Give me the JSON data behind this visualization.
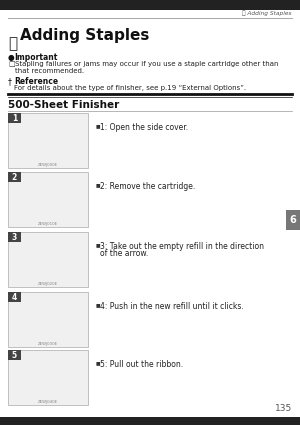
{
  "page_bg": "#ffffff",
  "header_line_color": "#aaaaaa",
  "header_right_text": "庭 Adding Staples",
  "title": "Adding Staples",
  "important_label": "Important",
  "important_text_line1": "Stapling failures or jams may occur if you use a staple cartridge other than",
  "important_text_line2": "that recommended.",
  "reference_label": "Reference",
  "reference_text": "For details about the type of finisher, see p.19 “External Options”.",
  "section_title": "500-Sheet Finisher",
  "steps": [
    "1: Open the side cover.",
    "2: Remove the cartridge.",
    "3: Take out the empty refill in the direction\nof the arrow.",
    "4: Push in the new refill until it clicks.",
    "5: Pull out the ribbon."
  ],
  "step_numbers": [
    "1",
    "2",
    "3",
    "4",
    "5"
  ],
  "step_codes": [
    "ZEWJ000E",
    "ZEWJ010E",
    "ZEWJ020E",
    "ZEWJ030E",
    "ZEWJ040E"
  ],
  "page_number": "135",
  "tab_label": "6",
  "tab_color": "#777777",
  "tab_text_color": "#ffffff",
  "top_bar_color": "#222222",
  "bottom_bar_color": "#222222"
}
